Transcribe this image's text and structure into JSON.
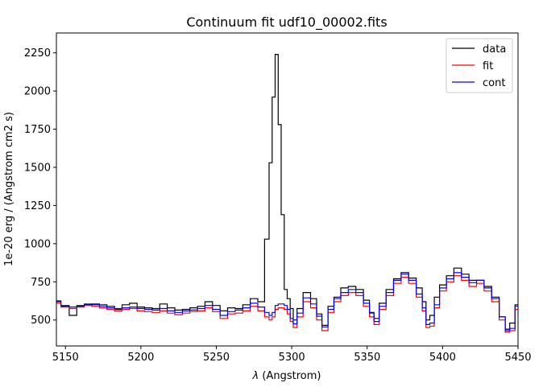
{
  "chart_data": {
    "type": "line",
    "drawstyle": "steps-mid",
    "title": "Continuum fit udf10_00002.fits",
    "xlabel": "λ (Angstrom)",
    "xlabel_symbol": "λ",
    "xlabel_rest": " (Angstrom)",
    "ylabel": "1e-20 erg / (Angstrom cm2 s)",
    "xlim": [
      5144,
      5450
    ],
    "ylim": [
      330,
      2380
    ],
    "xticks": [
      5150,
      5200,
      5250,
      5300,
      5350,
      5400,
      5450
    ],
    "yticks": [
      500,
      750,
      1000,
      1250,
      1500,
      1750,
      2000,
      2250
    ],
    "grid": false,
    "legend_position": "top-right",
    "series": [
      {
        "name": "data",
        "color": "#000000",
        "x": [
          5144,
          5150,
          5155,
          5160,
          5165,
          5170,
          5175,
          5180,
          5185,
          5190,
          5195,
          5200,
          5205,
          5210,
          5215,
          5220,
          5225,
          5230,
          5235,
          5240,
          5245,
          5250,
          5255,
          5260,
          5265,
          5270,
          5275,
          5280,
          5284,
          5286,
          5288,
          5290,
          5292,
          5294,
          5296,
          5298,
          5300,
          5302,
          5305,
          5310,
          5315,
          5318,
          5322,
          5326,
          5330,
          5335,
          5340,
          5345,
          5350,
          5353,
          5356,
          5360,
          5365,
          5370,
          5375,
          5380,
          5385,
          5388,
          5390,
          5393,
          5396,
          5400,
          5405,
          5410,
          5415,
          5420,
          5425,
          5430,
          5435,
          5440,
          5443,
          5446,
          5450
        ],
        "y": [
          625,
          590,
          530,
          590,
          600,
          605,
          600,
          590,
          570,
          600,
          610,
          585,
          580,
          575,
          605,
          580,
          565,
          570,
          580,
          590,
          620,
          595,
          560,
          580,
          575,
          600,
          640,
          620,
          1030,
          1530,
          1960,
          2240,
          1780,
          1190,
          700,
          640,
          575,
          500,
          575,
          680,
          640,
          540,
          465,
          590,
          650,
          710,
          720,
          700,
          630,
          550,
          510,
          610,
          700,
          770,
          810,
          775,
          710,
          620,
          500,
          530,
          650,
          730,
          790,
          840,
          800,
          760,
          760,
          720,
          650,
          520,
          440,
          480,
          600
        ]
      },
      {
        "name": "fit",
        "color": "#ff0000",
        "x": [
          5144,
          5150,
          5155,
          5160,
          5165,
          5170,
          5175,
          5180,
          5185,
          5190,
          5195,
          5200,
          5205,
          5210,
          5215,
          5220,
          5225,
          5230,
          5235,
          5240,
          5245,
          5250,
          5255,
          5260,
          5265,
          5270,
          5275,
          5280,
          5284,
          5286,
          5288,
          5290,
          5292,
          5294,
          5296,
          5298,
          5300,
          5302,
          5305,
          5310,
          5315,
          5318,
          5322,
          5326,
          5330,
          5335,
          5340,
          5345,
          5350,
          5353,
          5356,
          5360,
          5365,
          5370,
          5375,
          5380,
          5385,
          5388,
          5390,
          5393,
          5396,
          5400,
          5405,
          5410,
          5415,
          5420,
          5425,
          5430,
          5435,
          5440,
          5443,
          5446,
          5450
        ],
        "y": [
          610,
          585,
          575,
          585,
          595,
          590,
          580,
          570,
          560,
          570,
          575,
          560,
          555,
          550,
          560,
          545,
          535,
          545,
          555,
          560,
          580,
          555,
          510,
          540,
          545,
          560,
          590,
          560,
          520,
          500,
          520,
          570,
          580,
          580,
          570,
          540,
          490,
          450,
          520,
          620,
          580,
          500,
          430,
          550,
          620,
          660,
          680,
          660,
          590,
          520,
          470,
          570,
          660,
          740,
          780,
          740,
          650,
          560,
          450,
          460,
          580,
          690,
          750,
          790,
          760,
          720,
          740,
          690,
          620,
          500,
          420,
          430,
          570
        ]
      },
      {
        "name": "cont",
        "color": "#0000ff",
        "x": [
          5144,
          5150,
          5155,
          5160,
          5165,
          5170,
          5175,
          5180,
          5185,
          5190,
          5195,
          5200,
          5205,
          5210,
          5215,
          5220,
          5225,
          5230,
          5235,
          5240,
          5245,
          5250,
          5255,
          5260,
          5265,
          5270,
          5275,
          5280,
          5284,
          5286,
          5288,
          5290,
          5292,
          5294,
          5296,
          5298,
          5300,
          5302,
          5305,
          5310,
          5315,
          5318,
          5322,
          5326,
          5330,
          5335,
          5340,
          5345,
          5350,
          5353,
          5356,
          5360,
          5365,
          5370,
          5375,
          5380,
          5385,
          5388,
          5390,
          5393,
          5396,
          5400,
          5405,
          5410,
          5415,
          5420,
          5425,
          5430,
          5435,
          5440,
          5443,
          5446,
          5450
        ],
        "y": [
          620,
          595,
          585,
          595,
          605,
          600,
          590,
          580,
          575,
          580,
          585,
          575,
          570,
          565,
          575,
          560,
          550,
          560,
          565,
          575,
          595,
          570,
          530,
          555,
          565,
          580,
          610,
          585,
          550,
          530,
          550,
          595,
          605,
          605,
          595,
          570,
          510,
          475,
          545,
          645,
          605,
          525,
          455,
          570,
          640,
          680,
          700,
          680,
          610,
          545,
          490,
          590,
          680,
          760,
          800,
          760,
          670,
          580,
          470,
          480,
          600,
          710,
          770,
          810,
          780,
          745,
          760,
          710,
          640,
          520,
          430,
          445,
          590
        ]
      }
    ]
  }
}
